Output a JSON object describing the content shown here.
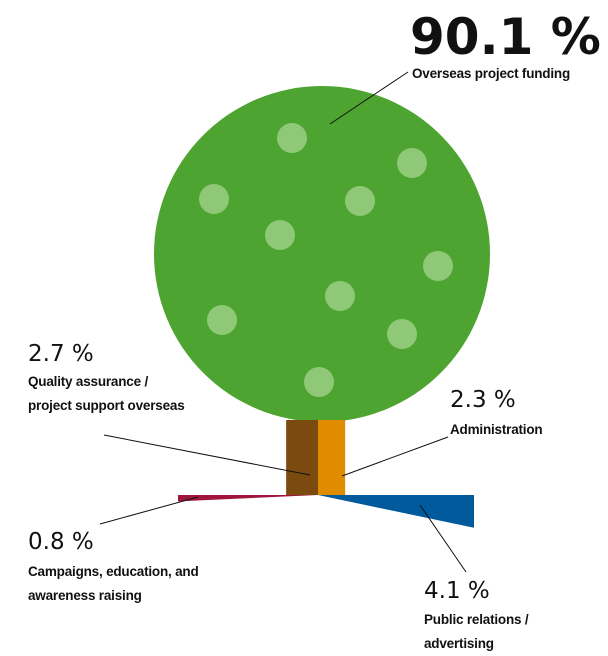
{
  "chart_data": {
    "type": "tree",
    "categories": [
      "Overseas project funding",
      "Quality assurance / project support overseas",
      "Administration",
      "Campaigns, education, and awareness raising",
      "Public relations / advertising"
    ],
    "values": [
      90.1,
      2.7,
      2.3,
      0.8,
      4.1
    ],
    "value_labels": [
      "90.1 %",
      "2.7 %",
      "2.3 %",
      "0.8 %",
      "4.1 %"
    ],
    "colors": [
      "#4ea431",
      "#7a4a0e",
      "#e08c00",
      "#a0153e",
      "#005a9c"
    ]
  }
}
